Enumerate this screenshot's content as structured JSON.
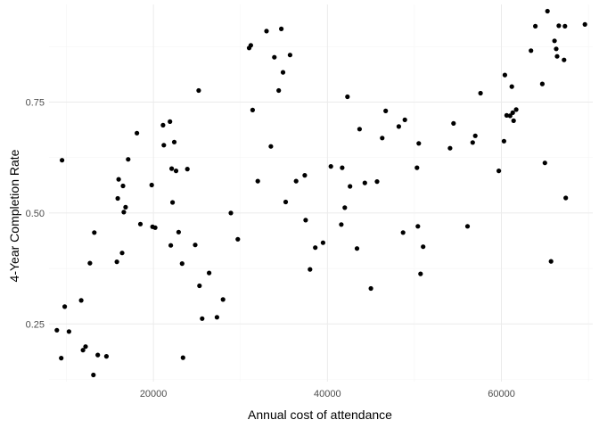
{
  "chart_data": {
    "type": "scatter",
    "title": "",
    "xlabel": "Annual cost of attendance",
    "ylabel": "4-Year Completion Rate",
    "xlim": [
      8000,
      70500
    ],
    "ylim": [
      0.12,
      0.97
    ],
    "x_ticks": [
      20000,
      40000,
      60000
    ],
    "x_tick_labels": [
      "20000",
      "40000",
      "60000"
    ],
    "y_ticks": [
      0.25,
      0.5,
      0.75
    ],
    "y_tick_labels": [
      "0.25",
      "0.50",
      "0.75"
    ],
    "grid": true,
    "legend": "none",
    "point_color": "#000000",
    "points": [
      [
        8900,
        0.236
      ],
      [
        9400,
        0.173
      ],
      [
        9500,
        0.619
      ],
      [
        9800,
        0.289
      ],
      [
        10300,
        0.233
      ],
      [
        11700,
        0.303
      ],
      [
        11900,
        0.191
      ],
      [
        12200,
        0.199
      ],
      [
        12700,
        0.387
      ],
      [
        13100,
        0.135
      ],
      [
        13200,
        0.456
      ],
      [
        13600,
        0.18
      ],
      [
        14600,
        0.177
      ],
      [
        15800,
        0.39
      ],
      [
        15900,
        0.533
      ],
      [
        16000,
        0.576
      ],
      [
        16400,
        0.41
      ],
      [
        16500,
        0.561
      ],
      [
        16600,
        0.502
      ],
      [
        16800,
        0.513
      ],
      [
        17100,
        0.621
      ],
      [
        18100,
        0.68
      ],
      [
        18500,
        0.475
      ],
      [
        19800,
        0.563
      ],
      [
        19900,
        0.469
      ],
      [
        20200,
        0.467
      ],
      [
        21100,
        0.698
      ],
      [
        21200,
        0.653
      ],
      [
        21900,
        0.706
      ],
      [
        22000,
        0.427
      ],
      [
        22100,
        0.6
      ],
      [
        22200,
        0.524
      ],
      [
        22400,
        0.66
      ],
      [
        22600,
        0.595
      ],
      [
        22900,
        0.457
      ],
      [
        23300,
        0.386
      ],
      [
        23400,
        0.174
      ],
      [
        23900,
        0.599
      ],
      [
        24800,
        0.428
      ],
      [
        25200,
        0.776
      ],
      [
        25300,
        0.336
      ],
      [
        25600,
        0.262
      ],
      [
        26400,
        0.365
      ],
      [
        27300,
        0.265
      ],
      [
        28000,
        0.305
      ],
      [
        28900,
        0.5
      ],
      [
        29700,
        0.441
      ],
      [
        31000,
        0.872
      ],
      [
        31200,
        0.878
      ],
      [
        31400,
        0.732
      ],
      [
        32000,
        0.572
      ],
      [
        33000,
        0.91
      ],
      [
        33500,
        0.65
      ],
      [
        33900,
        0.851
      ],
      [
        34400,
        0.776
      ],
      [
        34700,
        0.915
      ],
      [
        34900,
        0.817
      ],
      [
        35200,
        0.525
      ],
      [
        35700,
        0.856
      ],
      [
        36400,
        0.572
      ],
      [
        37400,
        0.585
      ],
      [
        37500,
        0.484
      ],
      [
        38000,
        0.373
      ],
      [
        38600,
        0.422
      ],
      [
        39500,
        0.433
      ],
      [
        40400,
        0.605
      ],
      [
        41600,
        0.474
      ],
      [
        41700,
        0.602
      ],
      [
        42000,
        0.512
      ],
      [
        42300,
        0.762
      ],
      [
        42600,
        0.56
      ],
      [
        43400,
        0.42
      ],
      [
        43700,
        0.689
      ],
      [
        44300,
        0.568
      ],
      [
        45000,
        0.33
      ],
      [
        45700,
        0.571
      ],
      [
        46300,
        0.669
      ],
      [
        46700,
        0.73
      ],
      [
        48200,
        0.695
      ],
      [
        48700,
        0.456
      ],
      [
        48900,
        0.71
      ],
      [
        50300,
        0.602
      ],
      [
        50400,
        0.47
      ],
      [
        50500,
        0.657
      ],
      [
        50700,
        0.363
      ],
      [
        51000,
        0.424
      ],
      [
        54100,
        0.646
      ],
      [
        54500,
        0.702
      ],
      [
        56100,
        0.47
      ],
      [
        56700,
        0.659
      ],
      [
        57000,
        0.674
      ],
      [
        57600,
        0.77
      ],
      [
        59700,
        0.595
      ],
      [
        60300,
        0.662
      ],
      [
        60400,
        0.811
      ],
      [
        60600,
        0.72
      ],
      [
        61000,
        0.719
      ],
      [
        61200,
        0.785
      ],
      [
        61300,
        0.726
      ],
      [
        61400,
        0.708
      ],
      [
        61700,
        0.733
      ],
      [
        63400,
        0.866
      ],
      [
        63900,
        0.921
      ],
      [
        64700,
        0.791
      ],
      [
        65000,
        0.613
      ],
      [
        65300,
        0.955
      ],
      [
        65700,
        0.391
      ],
      [
        66100,
        0.888
      ],
      [
        66300,
        0.87
      ],
      [
        66400,
        0.853
      ],
      [
        66600,
        0.922
      ],
      [
        67200,
        0.845
      ],
      [
        67300,
        0.921
      ],
      [
        67400,
        0.534
      ],
      [
        69600,
        0.925
      ]
    ]
  }
}
